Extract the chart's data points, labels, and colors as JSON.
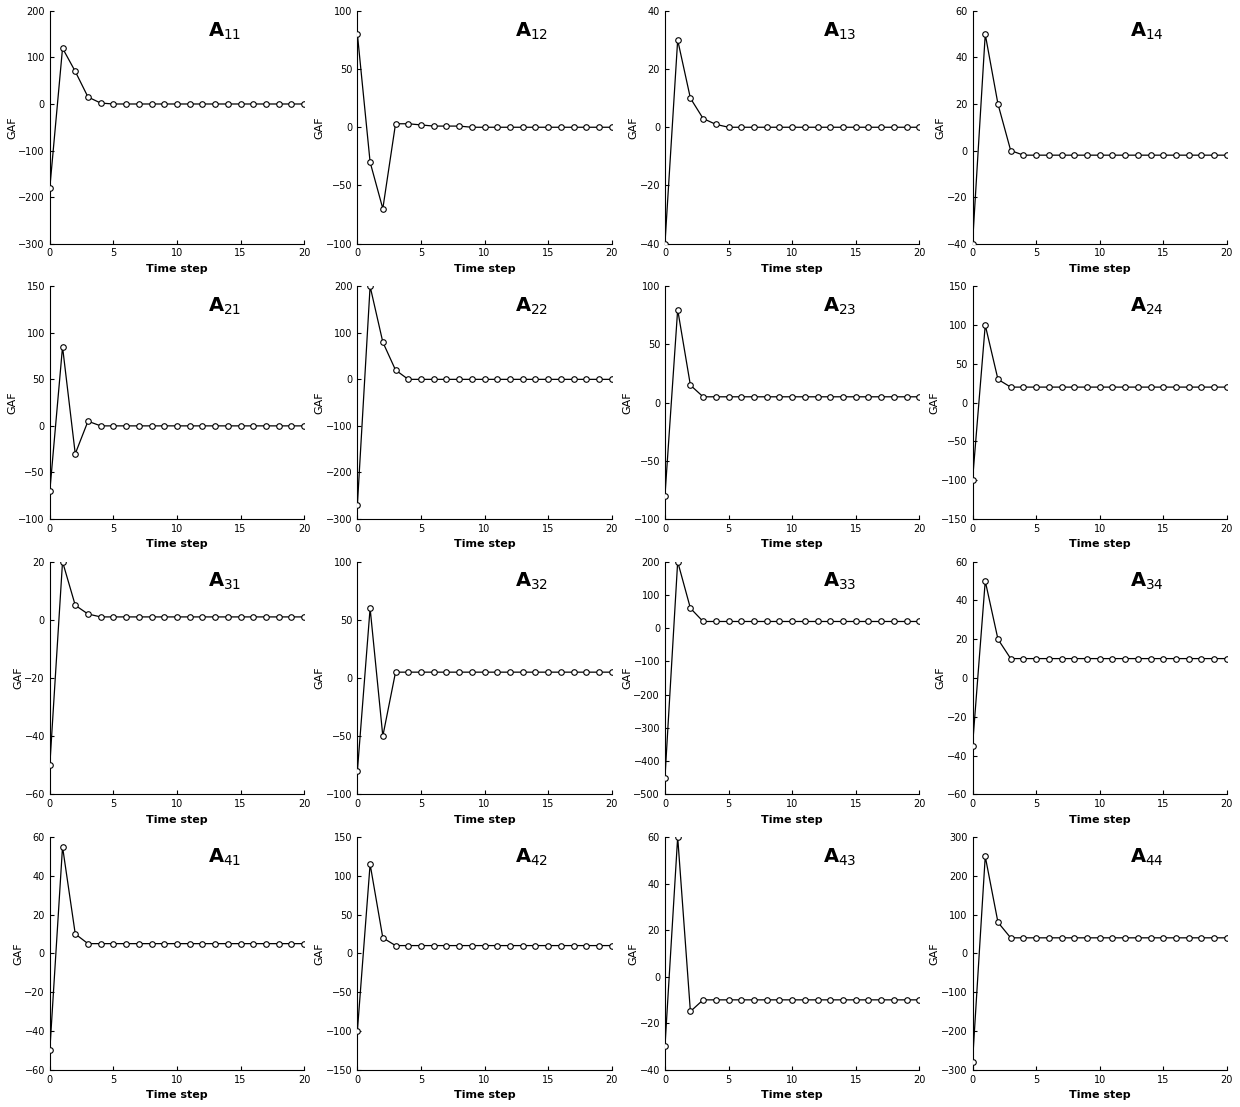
{
  "subplots": [
    {
      "subscript": "11",
      "ylim": [
        -300,
        200
      ],
      "yticks": [
        -300,
        -200,
        -100,
        0,
        100,
        200
      ],
      "y": [
        -180,
        120,
        70,
        15,
        2,
        0,
        0,
        0,
        0,
        0,
        0,
        0,
        0,
        0,
        0,
        0,
        0,
        0,
        0,
        0,
        0
      ]
    },
    {
      "subscript": "12",
      "ylim": [
        -100,
        100
      ],
      "yticks": [
        -100,
        -50,
        0,
        50,
        100
      ],
      "y": [
        80,
        -30,
        -70,
        3,
        3,
        2,
        1,
        1,
        1,
        0,
        0,
        0,
        0,
        0,
        0,
        0,
        0,
        0,
        0,
        0,
        0
      ]
    },
    {
      "subscript": "13",
      "ylim": [
        -40,
        40
      ],
      "yticks": [
        -40,
        -20,
        0,
        20,
        40
      ],
      "y": [
        -40,
        30,
        10,
        3,
        1,
        0,
        0,
        0,
        0,
        0,
        0,
        0,
        0,
        0,
        0,
        0,
        0,
        0,
        0,
        0,
        0
      ]
    },
    {
      "subscript": "14",
      "ylim": [
        -40,
        60
      ],
      "yticks": [
        -40,
        -20,
        0,
        20,
        40,
        60
      ],
      "y": [
        -40,
        50,
        20,
        0,
        -2,
        -2,
        -2,
        -2,
        -2,
        -2,
        -2,
        -2,
        -2,
        -2,
        -2,
        -2,
        -2,
        -2,
        -2,
        -2,
        -2
      ]
    },
    {
      "subscript": "21",
      "ylim": [
        -100,
        150
      ],
      "yticks": [
        -100,
        -50,
        0,
        50,
        100,
        150
      ],
      "y": [
        -70,
        85,
        -30,
        5,
        0,
        0,
        0,
        0,
        0,
        0,
        0,
        0,
        0,
        0,
        0,
        0,
        0,
        0,
        0,
        0,
        0
      ]
    },
    {
      "subscript": "22",
      "ylim": [
        -300,
        200
      ],
      "yticks": [
        -300,
        -200,
        -100,
        0,
        100,
        200
      ],
      "y": [
        -270,
        200,
        80,
        20,
        0,
        0,
        0,
        0,
        0,
        0,
        0,
        0,
        0,
        0,
        0,
        0,
        0,
        0,
        0,
        0,
        0
      ]
    },
    {
      "subscript": "23",
      "ylim": [
        -100,
        100
      ],
      "yticks": [
        -100,
        -50,
        0,
        50,
        100
      ],
      "y": [
        -80,
        80,
        15,
        5,
        5,
        5,
        5,
        5,
        5,
        5,
        5,
        5,
        5,
        5,
        5,
        5,
        5,
        5,
        5,
        5,
        5
      ]
    },
    {
      "subscript": "24",
      "ylim": [
        -150,
        150
      ],
      "yticks": [
        -150,
        -100,
        -50,
        0,
        50,
        100,
        150
      ],
      "y": [
        -100,
        100,
        30,
        20,
        20,
        20,
        20,
        20,
        20,
        20,
        20,
        20,
        20,
        20,
        20,
        20,
        20,
        20,
        20,
        20,
        20
      ]
    },
    {
      "subscript": "31",
      "ylim": [
        -60,
        20
      ],
      "yticks": [
        -60,
        -40,
        -20,
        0,
        20
      ],
      "y": [
        -50,
        20,
        5,
        2,
        1,
        1,
        1,
        1,
        1,
        1,
        1,
        1,
        1,
        1,
        1,
        1,
        1,
        1,
        1,
        1,
        1
      ]
    },
    {
      "subscript": "32",
      "ylim": [
        -100,
        100
      ],
      "yticks": [
        -100,
        -50,
        0,
        50,
        100
      ],
      "y": [
        -80,
        60,
        -50,
        5,
        5,
        5,
        5,
        5,
        5,
        5,
        5,
        5,
        5,
        5,
        5,
        5,
        5,
        5,
        5,
        5,
        5
      ]
    },
    {
      "subscript": "33",
      "ylim": [
        -500,
        200
      ],
      "yticks": [
        -500,
        -400,
        -300,
        -200,
        -100,
        0,
        100,
        200
      ],
      "y": [
        -450,
        200,
        60,
        20,
        20,
        20,
        20,
        20,
        20,
        20,
        20,
        20,
        20,
        20,
        20,
        20,
        20,
        20,
        20,
        20,
        20
      ]
    },
    {
      "subscript": "34",
      "ylim": [
        -60,
        60
      ],
      "yticks": [
        -60,
        -40,
        -20,
        0,
        20,
        40,
        60
      ],
      "y": [
        -35,
        50,
        20,
        10,
        10,
        10,
        10,
        10,
        10,
        10,
        10,
        10,
        10,
        10,
        10,
        10,
        10,
        10,
        10,
        10,
        10
      ]
    },
    {
      "subscript": "41",
      "ylim": [
        -60,
        60
      ],
      "yticks": [
        -60,
        -40,
        -20,
        0,
        20,
        40,
        60
      ],
      "y": [
        -50,
        55,
        10,
        5,
        5,
        5,
        5,
        5,
        5,
        5,
        5,
        5,
        5,
        5,
        5,
        5,
        5,
        5,
        5,
        5,
        5
      ]
    },
    {
      "subscript": "42",
      "ylim": [
        -150,
        150
      ],
      "yticks": [
        -150,
        -100,
        -50,
        0,
        50,
        100,
        150
      ],
      "y": [
        -100,
        115,
        20,
        10,
        10,
        10,
        10,
        10,
        10,
        10,
        10,
        10,
        10,
        10,
        10,
        10,
        10,
        10,
        10,
        10,
        10
      ]
    },
    {
      "subscript": "43",
      "ylim": [
        -40,
        60
      ],
      "yticks": [
        -40,
        -20,
        0,
        20,
        40,
        60
      ],
      "y": [
        -30,
        60,
        -15,
        -10,
        -10,
        -10,
        -10,
        -10,
        -10,
        -10,
        -10,
        -10,
        -10,
        -10,
        -10,
        -10,
        -10,
        -10,
        -10,
        -10,
        -10
      ]
    },
    {
      "subscript": "44",
      "ylim": [
        -300,
        300
      ],
      "yticks": [
        -300,
        -200,
        -100,
        0,
        100,
        200,
        300
      ],
      "y": [
        -280,
        250,
        80,
        40,
        40,
        40,
        40,
        40,
        40,
        40,
        40,
        40,
        40,
        40,
        40,
        40,
        40,
        40,
        40,
        40,
        40
      ]
    }
  ],
  "t": [
    0,
    1,
    2,
    3,
    4,
    5,
    6,
    7,
    8,
    9,
    10,
    11,
    12,
    13,
    14,
    15,
    16,
    17,
    18,
    19,
    20
  ],
  "xlim": [
    0,
    20
  ],
  "xticks": [
    0,
    5,
    10,
    15,
    20
  ],
  "xlabel": "Time step",
  "ylabel": "GAF",
  "line_color": "#000000",
  "marker": "o",
  "markersize": 4.0,
  "marker_facecolor": "white",
  "linewidth": 0.9,
  "title_fontsize": 14,
  "label_fontsize": 8,
  "tick_fontsize": 7
}
